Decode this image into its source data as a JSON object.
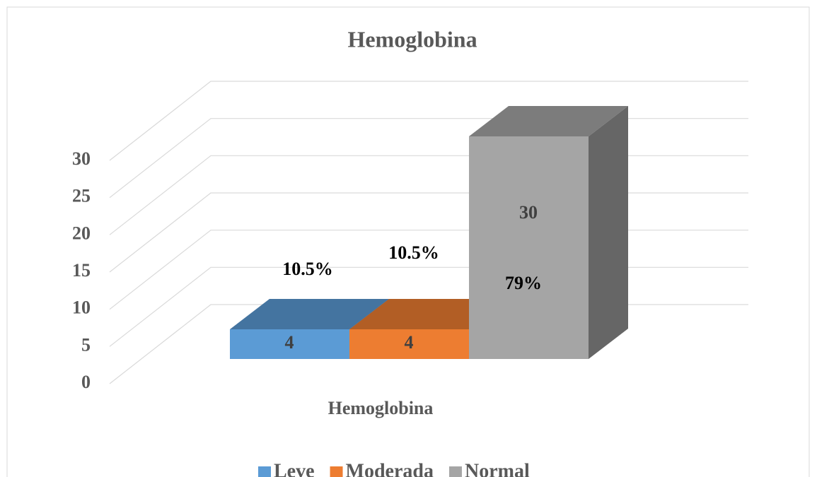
{
  "chart_data": {
    "type": "bar3d",
    "title": "Hemoglobina",
    "categories": [
      "Hemoglobina"
    ],
    "series": [
      {
        "name": "Leve",
        "color": "#5b9bd5",
        "values": [
          4
        ],
        "percent_labels": [
          "10.5%"
        ]
      },
      {
        "name": "Moderada",
        "color": "#ed7d31",
        "values": [
          4
        ],
        "percent_labels": [
          "10.5%"
        ]
      },
      {
        "name": "Normal",
        "color": "#a5a5a5",
        "values": [
          30
        ],
        "percent_labels": [
          "79%"
        ]
      }
    ],
    "ylim": [
      0,
      30
    ],
    "yticks": [
      0,
      5,
      10,
      15,
      20,
      25,
      30
    ],
    "grid": true,
    "legend": "bottom"
  }
}
